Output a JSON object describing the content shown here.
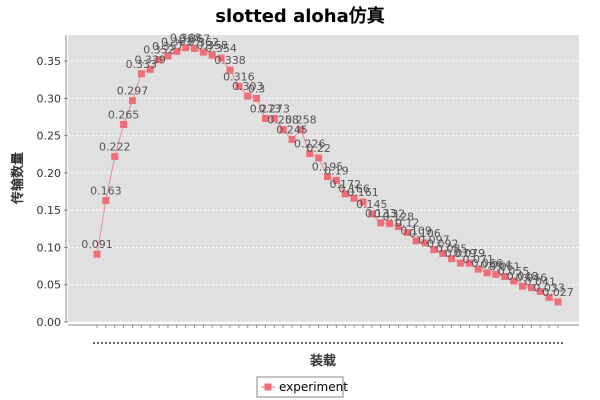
{
  "chart_data": {
    "type": "line",
    "title": "slotted aloha仿真",
    "xlabel": "装载",
    "ylabel": "传输数量",
    "ylim": [
      0,
      0.385
    ],
    "yticks": [
      "0.00",
      "0.05",
      "0.10",
      "0.15",
      "0.20",
      "0.25",
      "0.30",
      "0.35"
    ],
    "grid": true,
    "legend_position": "bottom-center",
    "series": [
      {
        "name": "experiment",
        "color": "#f06e78",
        "values": [
          0.091,
          0.163,
          0.222,
          0.265,
          0.297,
          0.333,
          0.339,
          0.352,
          0.357,
          0.363,
          0.368,
          0.367,
          0.362,
          0.358,
          0.354,
          0.338,
          0.316,
          0.303,
          0.3,
          0.273,
          0.273,
          0.258,
          0.245,
          0.258,
          0.226,
          0.22,
          0.195,
          0.19,
          0.172,
          0.166,
          0.161,
          0.145,
          0.133,
          0.132,
          0.128,
          0.12,
          0.109,
          0.106,
          0.097,
          0.092,
          0.085,
          0.079,
          0.079,
          0.071,
          0.066,
          0.064,
          0.061,
          0.055,
          0.048,
          0.046,
          0.041,
          0.033,
          0.027
        ],
        "labels": [
          "0.091",
          "0.163",
          "0.222",
          "0.265",
          "0.297",
          "0.333",
          "0.339",
          "0.352",
          "0.357",
          "0.363",
          "0.368",
          "0.367",
          "0.362",
          "0.358",
          "0.354",
          "0.338",
          "0.316",
          "0.303",
          "0.3",
          "0.273",
          "0.273",
          "0.258",
          "0.245",
          "0.258",
          "0.226",
          "0.22",
          "0.195",
          "0.19",
          "0.172",
          "0.166",
          "0.161",
          "0.145",
          "0.133",
          "0.132",
          "0.128",
          "0.12",
          "0.109",
          "0.106",
          "0.097",
          "0.092",
          "0.085",
          "0.079",
          "0.079",
          "0.071",
          "0.066",
          "0.064",
          "0.061",
          "0.055",
          "0.048",
          "0.046",
          "0.041",
          "0.033",
          "0.027"
        ]
      }
    ]
  }
}
